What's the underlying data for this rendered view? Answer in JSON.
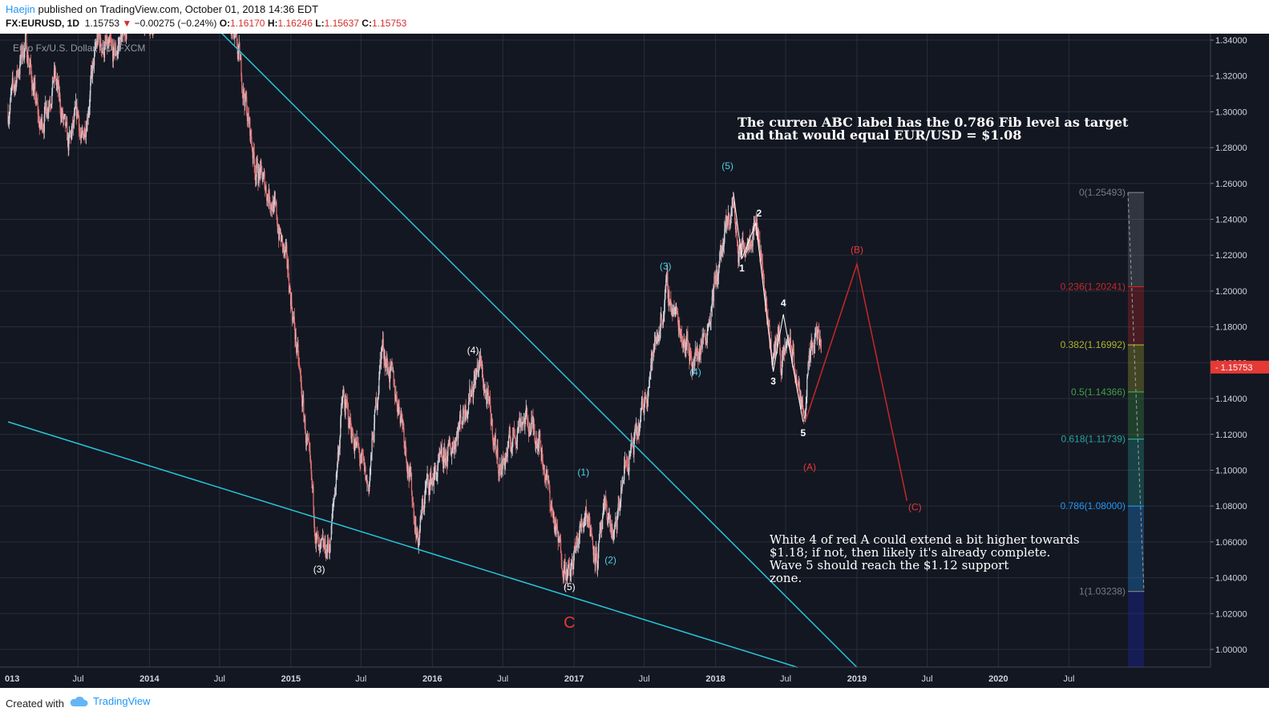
{
  "header": {
    "author": "Haejin",
    "published_text": " published on TradingView.com, October 01, 2018 14:36 EDT",
    "symbol": "FX:EURUSD, 1D",
    "last": "1.15753",
    "change_arrow": "▼",
    "change": "−0.00275 (−0.24%)",
    "o_label": "O:",
    "o_value": "1.16170",
    "h_label": "H:",
    "h_value": "1.16246",
    "l_label": "L:",
    "l_value": "1.15637",
    "c_label": "C:",
    "c_value": "1.15753"
  },
  "footer": {
    "created_with": "Created with",
    "brand": "TradingView"
  },
  "colors": {
    "background": "#131722",
    "grid": "#2a2e39",
    "trendline": "#26c6da",
    "candle_up": "#d1d4dc",
    "candle_down": "#e57373",
    "wave_red": "#c62828",
    "wave_white": "#ffffff",
    "price_tag": "#e53935"
  },
  "chart_data": {
    "type": "candlestick",
    "title": "Euro Fx/U.S. Dollar, 1D, FXCM",
    "y_axis": {
      "ticks": [
        "1.34000",
        "1.32000",
        "1.30000",
        "1.28000",
        "1.26000",
        "1.24000",
        "1.22000",
        "1.20000",
        "1.18000",
        "1.16000",
        "1.14000",
        "1.12000",
        "1.10000",
        "1.08000",
        "1.06000",
        "1.04000",
        "1.02000",
        "1.00000"
      ],
      "range": [
        0.99,
        1.345
      ]
    },
    "x_axis": {
      "ticks": [
        "013",
        "Jul",
        "2014",
        "Jul",
        "2015",
        "Jul",
        "2016",
        "Jul",
        "2017",
        "Jul",
        "2018",
        "Jul",
        "2019",
        "Jul",
        "2020",
        "Jul"
      ],
      "range": [
        "2013-01",
        "2020-10"
      ]
    },
    "current_price": "1.15753",
    "price_path": [
      [
        "2013-01-01",
        1.3
      ],
      [
        "2013-02-15",
        1.34
      ],
      [
        "2013-03-25",
        1.29
      ],
      [
        "2013-05-01",
        1.32
      ],
      [
        "2013-06-05",
        1.28
      ],
      [
        "2013-07-01",
        1.3
      ],
      [
        "2013-07-10",
        1.28
      ],
      [
        "2013-08-20",
        1.34
      ],
      [
        "2013-10-01",
        1.33
      ],
      [
        "2013-11-20",
        1.36
      ],
      [
        "2014-02-01",
        1.35
      ],
      [
        "2014-05-08",
        1.39
      ],
      [
        "2014-07-10",
        1.36
      ],
      [
        "2014-08-20",
        1.33
      ],
      [
        "2014-10-01",
        1.27
      ],
      [
        "2014-11-15",
        1.25
      ],
      [
        "2014-12-25",
        1.21
      ],
      [
        "2015-01-20",
        1.16
      ],
      [
        "2015-03-15",
        1.05
      ],
      [
        "2015-04-13",
        1.06
      ],
      [
        "2015-05-15",
        1.14
      ],
      [
        "2015-06-10",
        1.12
      ],
      [
        "2015-07-20",
        1.09
      ],
      [
        "2015-08-24",
        1.17
      ],
      [
        "2015-10-15",
        1.13
      ],
      [
        "2015-11-25",
        1.06
      ],
      [
        "2015-12-15",
        1.09
      ],
      [
        "2016-02-15",
        1.11
      ],
      [
        "2016-05-03",
        1.16
      ],
      [
        "2016-06-24",
        1.1
      ],
      [
        "2016-08-18",
        1.13
      ],
      [
        "2016-10-01",
        1.12
      ],
      [
        "2016-11-20",
        1.06
      ],
      [
        "2016-12-20",
        1.04
      ],
      [
        "2017-01-10",
        1.06
      ],
      [
        "2017-02-01",
        1.08
      ],
      [
        "2017-03-01",
        1.05
      ],
      [
        "2017-03-25",
        1.08
      ],
      [
        "2017-04-15",
        1.06
      ],
      [
        "2017-05-10",
        1.1
      ],
      [
        "2017-06-15",
        1.12
      ],
      [
        "2017-07-20",
        1.16
      ],
      [
        "2017-08-29",
        1.2
      ],
      [
        "2017-10-01",
        1.18
      ],
      [
        "2017-11-07",
        1.16
      ],
      [
        "2017-12-10",
        1.18
      ],
      [
        "2018-01-15",
        1.22
      ],
      [
        "2018-02-16",
        1.25
      ],
      [
        "2018-03-01",
        1.22
      ],
      [
        "2018-04-17",
        1.24
      ],
      [
        "2018-05-29",
        1.16
      ],
      [
        "2018-06-14",
        1.18
      ],
      [
        "2018-06-20",
        1.155
      ],
      [
        "2018-07-09",
        1.175
      ],
      [
        "2018-08-15",
        1.13
      ],
      [
        "2018-09-01",
        1.16
      ],
      [
        "2018-09-24",
        1.178
      ],
      [
        "2018-10-01",
        1.1575
      ]
    ],
    "trendlines": [
      {
        "from": [
          "2014-07-01",
          1.345
        ],
        "to": [
          "2019-01-01",
          0.99
        ]
      },
      {
        "from": [
          "2013-01-01",
          1.127
        ],
        "to": [
          "2018-08-01",
          0.99
        ]
      }
    ],
    "projection": {
      "points": [
        [
          "2018-08-22",
          1.128
        ],
        [
          "2019-01-01",
          1.215
        ],
        [
          "2019-05-10",
          1.083
        ]
      ],
      "labels": [
        "(B)",
        "(C)"
      ]
    },
    "white_waves": {
      "points": [
        [
          "2018-02-16",
          1.255
        ],
        [
          "2018-03-10",
          1.218
        ],
        [
          "2018-04-15",
          1.238
        ],
        [
          "2018-05-30",
          1.155
        ],
        [
          "2018-06-25",
          1.187
        ],
        [
          "2018-08-15",
          1.127
        ]
      ],
      "labels": [
        "1",
        "2",
        "3",
        "4",
        "5"
      ]
    },
    "wave_labels": [
      {
        "text": "(4)",
        "x": "2016-04-15",
        "y": 1.165,
        "color": "white"
      },
      {
        "text": "(3)",
        "x": "2015-03-15",
        "y": 1.043,
        "color": "white"
      },
      {
        "text": "(5)",
        "x": "2016-12-20",
        "y": 1.033,
        "color": "white"
      },
      {
        "text": "C",
        "x": "2016-12-20",
        "y": 1.012,
        "color": "red"
      },
      {
        "text": "(1)",
        "x": "2017-01-25",
        "y": 1.097,
        "color": "cyan"
      },
      {
        "text": "(2)",
        "x": "2017-04-05",
        "y": 1.048,
        "color": "cyan"
      },
      {
        "text": "(3)",
        "x": "2017-08-25",
        "y": 1.212,
        "color": "cyan"
      },
      {
        "text": "(4)",
        "x": "2017-11-10",
        "y": 1.153,
        "color": "cyan"
      },
      {
        "text": "(5)",
        "x": "2018-02-01",
        "y": 1.268,
        "color": "cyan"
      },
      {
        "text": "(A)",
        "x": "2018-09-01",
        "y": 1.1,
        "color": "red"
      }
    ],
    "fib_levels": [
      {
        "label": "0(1.25493)",
        "value": 1.25493,
        "color": "#787b86"
      },
      {
        "label": "0.236(1.20241)",
        "value": 1.20241,
        "color": "#c62828"
      },
      {
        "label": "0.382(1.16992)",
        "value": 1.16992,
        "color": "#afb42b"
      },
      {
        "label": "0.5(1.14366)",
        "value": 1.14366,
        "color": "#43a047"
      },
      {
        "label": "0.618(1.11739)",
        "value": 1.11739,
        "color": "#26a69a"
      },
      {
        "label": "0.786(1.08000)",
        "value": 1.08,
        "color": "#2196f3"
      },
      {
        "label": "1(1.03238)",
        "value": 1.03238,
        "color": "#787b86"
      }
    ],
    "annotations": [
      {
        "lines": [
          "The curren ABC label has the 0.786 Fib level as target",
          "and that would equal EUR/USD = $1.08"
        ]
      },
      {
        "lines": [
          "White 4 of red A could extend a bit higher towards",
          "$1.18; if not, then likely it's already complete.",
          "Wave 5 should reach the $1.12 support",
          "zone."
        ]
      }
    ]
  }
}
